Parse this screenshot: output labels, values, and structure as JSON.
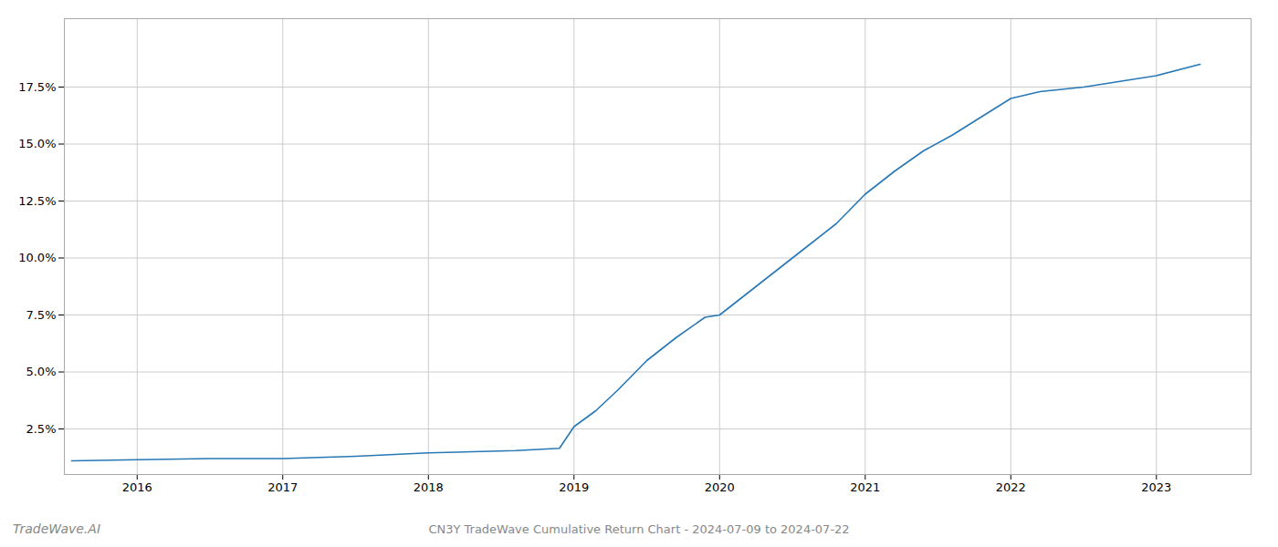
{
  "chart_data": {
    "type": "line",
    "title": "CN3Y TradeWave Cumulative Return Chart - 2024-07-09 to 2024-07-22",
    "annotations": [
      "TradeWave.AI"
    ],
    "x": [
      2015.55,
      2016.0,
      2016.5,
      2017.0,
      2017.5,
      2018.0,
      2018.3,
      2018.6,
      2018.9,
      2019.0,
      2019.15,
      2019.3,
      2019.5,
      2019.7,
      2019.9,
      2020.0,
      2020.2,
      2020.4,
      2020.6,
      2020.8,
      2021.0,
      2021.2,
      2021.4,
      2021.6,
      2021.8,
      2022.0,
      2022.2,
      2022.5,
      2022.7,
      2023.0,
      2023.3
    ],
    "values": [
      1.1,
      1.15,
      1.2,
      1.2,
      1.3,
      1.45,
      1.5,
      1.55,
      1.65,
      2.6,
      3.3,
      4.2,
      5.5,
      6.5,
      7.4,
      7.5,
      8.5,
      9.5,
      10.5,
      11.5,
      12.8,
      13.8,
      14.7,
      15.4,
      16.2,
      17.0,
      17.3,
      17.5,
      17.7,
      18.0,
      18.5
    ],
    "color": "#2878b5",
    "xlim": [
      2015.5,
      2023.65
    ],
    "ylim": [
      0.5,
      20.5
    ],
    "xticks": [
      2016,
      2017,
      2018,
      2019,
      2020,
      2021,
      2022,
      2023
    ],
    "yticks": [
      {
        "value": 2.5,
        "label": "2.5%"
      },
      {
        "value": 5.0,
        "label": "5.0%"
      },
      {
        "value": 7.5,
        "label": "7.5%"
      },
      {
        "value": 10.0,
        "label": "10.0%"
      },
      {
        "value": 12.5,
        "label": "12.5%"
      },
      {
        "value": 15.0,
        "label": "15.0%"
      },
      {
        "value": 17.5,
        "label": "17.5%"
      }
    ],
    "grid": true
  }
}
